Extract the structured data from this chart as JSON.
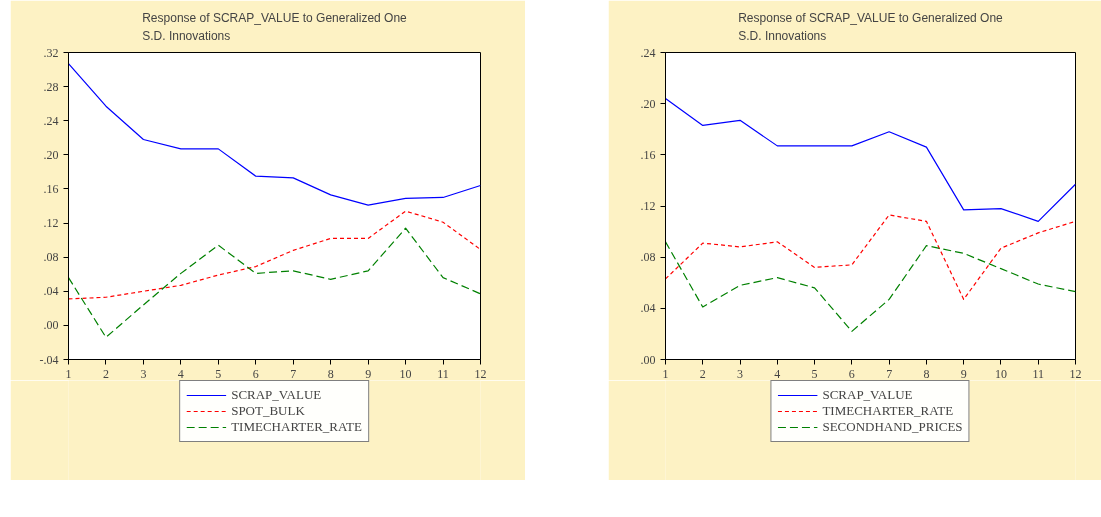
{
  "chart_data": [
    {
      "type": "line",
      "title": "Response of SCRAP_VALUE to Generalized One\nS.D. Innovations",
      "x": [
        1,
        2,
        3,
        4,
        5,
        6,
        7,
        8,
        9,
        10,
        11,
        12
      ],
      "xlim": [
        1,
        12
      ],
      "xticks": [
        1,
        2,
        3,
        4,
        5,
        6,
        7,
        8,
        9,
        10,
        11,
        12
      ],
      "ylim": [
        -0.04,
        0.32
      ],
      "yticks": [
        {
          "value": -0.04,
          "label": "-.04"
        },
        {
          "value": 0,
          "label": ".00"
        },
        {
          "value": 0.04,
          "label": ".04"
        },
        {
          "value": 0.08,
          "label": ".08"
        },
        {
          "value": 0.12,
          "label": ".12"
        },
        {
          "value": 0.16,
          "label": ".16"
        },
        {
          "value": 0.2,
          "label": ".20"
        },
        {
          "value": 0.24,
          "label": ".24"
        },
        {
          "value": 0.28,
          "label": ".28"
        },
        {
          "value": 0.32,
          "label": ".32"
        }
      ],
      "grid": false,
      "legend": "bottom",
      "marker": "none",
      "series": [
        {
          "name": "SCRAP_VALUE",
          "color": "#0000ff",
          "line_style": "solid",
          "values": [
            0.307,
            0.257,
            0.218,
            0.207,
            0.207,
            0.175,
            0.173,
            0.153,
            0.141,
            0.149,
            0.15,
            0.164
          ]
        },
        {
          "name": "SPOT_BULK",
          "color": "#ff0000",
          "line_style": "dotted",
          "values": [
            0.031,
            0.033,
            0.04,
            0.047,
            0.059,
            0.069,
            0.088,
            0.102,
            0.102,
            0.134,
            0.121,
            0.089
          ]
        },
        {
          "name": "TIMECHARTER_RATE",
          "color": "#008000",
          "line_style": "dashed",
          "values": [
            0.056,
            -0.014,
            0.024,
            0.061,
            0.094,
            0.061,
            0.064,
            0.054,
            0.064,
            0.114,
            0.056,
            0.037
          ]
        }
      ]
    },
    {
      "type": "line",
      "title": "Response of SCRAP_VALUE to Generalized One\nS.D. Innovations",
      "x": [
        1,
        2,
        3,
        4,
        5,
        6,
        7,
        8,
        9,
        10,
        11,
        12
      ],
      "xlim": [
        1,
        12
      ],
      "xticks": [
        1,
        2,
        3,
        4,
        5,
        6,
        7,
        8,
        9,
        10,
        11,
        12
      ],
      "ylim": [
        0,
        0.24
      ],
      "yticks": [
        {
          "value": 0,
          "label": ".00"
        },
        {
          "value": 0.04,
          "label": ".04"
        },
        {
          "value": 0.08,
          "label": ".08"
        },
        {
          "value": 0.12,
          "label": ".12"
        },
        {
          "value": 0.16,
          "label": ".16"
        },
        {
          "value": 0.2,
          "label": ".20"
        },
        {
          "value": 0.24,
          "label": ".24"
        }
      ],
      "grid": false,
      "legend": "bottom",
      "marker": "none",
      "series": [
        {
          "name": "SCRAP_VALUE",
          "color": "#0000ff",
          "line_style": "solid",
          "values": [
            0.204,
            0.183,
            0.187,
            0.167,
            0.167,
            0.167,
            0.178,
            0.166,
            0.117,
            0.118,
            0.108,
            0.137
          ]
        },
        {
          "name": "TIMECHARTER_RATE",
          "color": "#ff0000",
          "line_style": "dotted",
          "values": [
            0.063,
            0.091,
            0.088,
            0.092,
            0.072,
            0.074,
            0.113,
            0.108,
            0.047,
            0.087,
            0.099,
            0.108
          ]
        },
        {
          "name": "SECONDHAND_PRICES",
          "color": "#008000",
          "line_style": "dashed",
          "values": [
            0.092,
            0.041,
            0.058,
            0.064,
            0.056,
            0.022,
            0.047,
            0.089,
            0.083,
            0.071,
            0.059,
            0.053
          ]
        }
      ]
    }
  ]
}
